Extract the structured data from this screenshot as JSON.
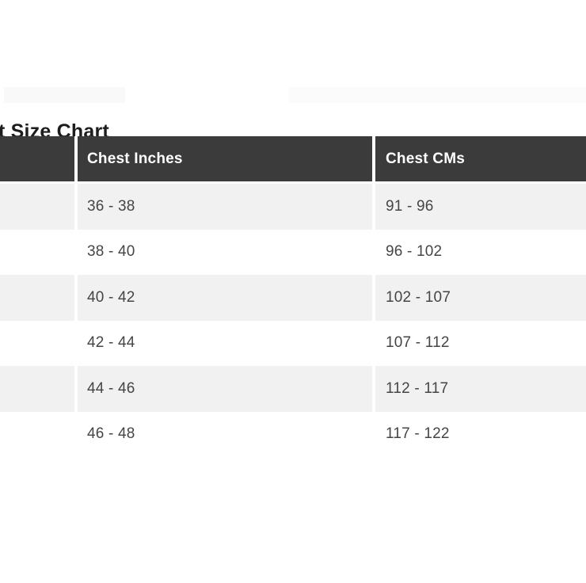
{
  "page": {
    "title": "t Size Chart"
  },
  "size_chart": {
    "columns": [
      "",
      "Chest Inches",
      "Chest CMs"
    ],
    "rows": [
      {
        "label": "",
        "chest_inches": "36 - 38",
        "chest_cms": "91 - 96"
      },
      {
        "label": "",
        "chest_inches": "38 - 40",
        "chest_cms": "96 - 102"
      },
      {
        "label": "",
        "chest_inches": "40 - 42",
        "chest_cms": "102 - 107"
      },
      {
        "label": "",
        "chest_inches": "42 - 44",
        "chest_cms": "107 - 112"
      },
      {
        "label": "",
        "chest_inches": "44 - 46",
        "chest_cms": "112 - 117"
      },
      {
        "label": "",
        "chest_inches": "46 - 48",
        "chest_cms": "117 - 122"
      }
    ]
  },
  "colors": {
    "header_bg": "#3b3b3b",
    "header_text": "#ffffff",
    "row_stripe_bg": "#f1f1f1",
    "row_plain_bg": "#ffffff",
    "row_text": "#454545",
    "title_text": "#1d1d1d",
    "column_gap": "#ffffff"
  }
}
